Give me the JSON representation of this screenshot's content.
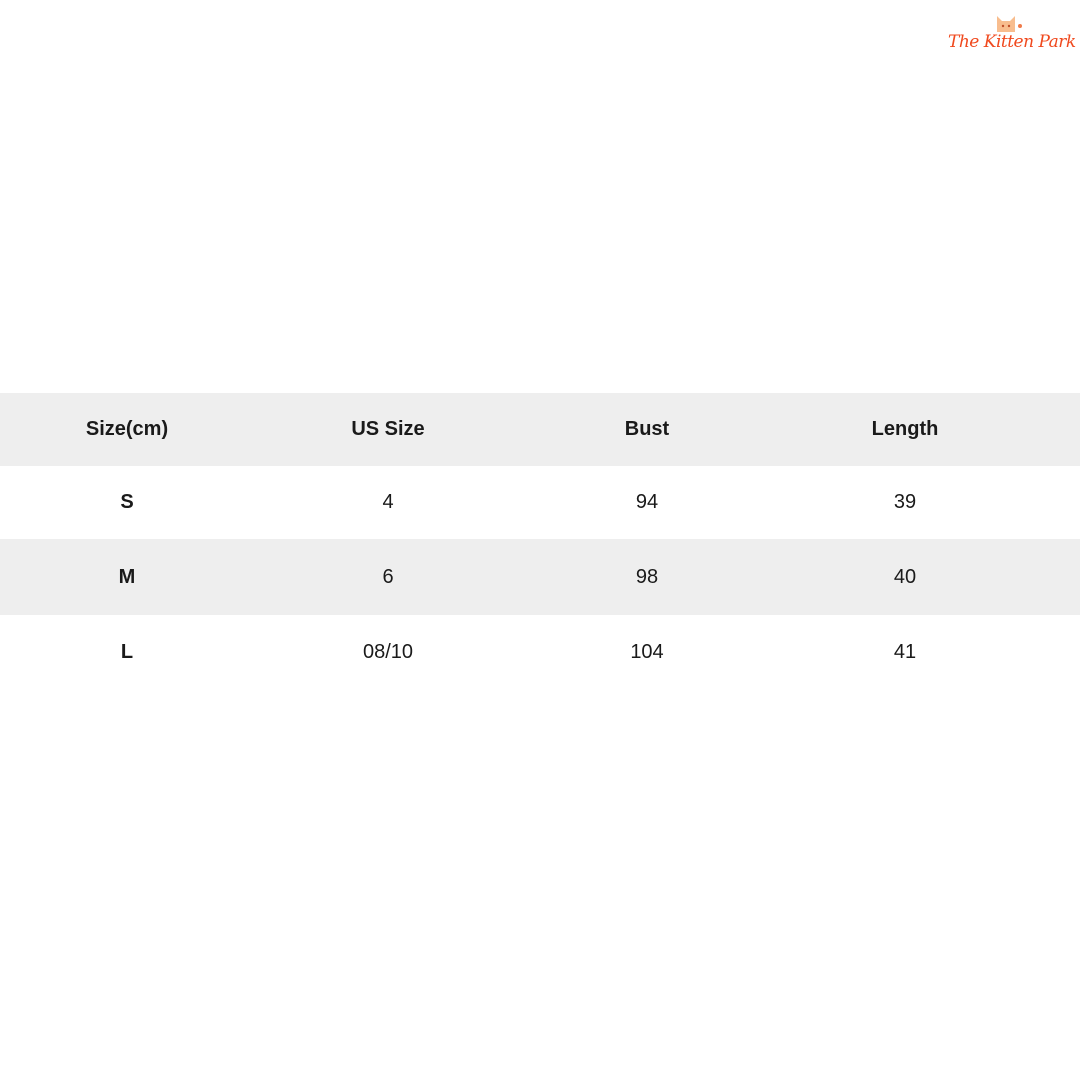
{
  "brand": {
    "logo_text": "The Kitten Park",
    "accent": "#f0491e"
  },
  "table": {
    "headers": [
      "Size(cm)",
      "US Size",
      "Bust",
      "Length"
    ],
    "rows": [
      [
        "S",
        "4",
        "94",
        "39"
      ],
      [
        "M",
        "6",
        "98",
        "40"
      ],
      [
        "L",
        "08/10",
        "104",
        "41"
      ]
    ],
    "stripe_color": "#eeeeee"
  }
}
